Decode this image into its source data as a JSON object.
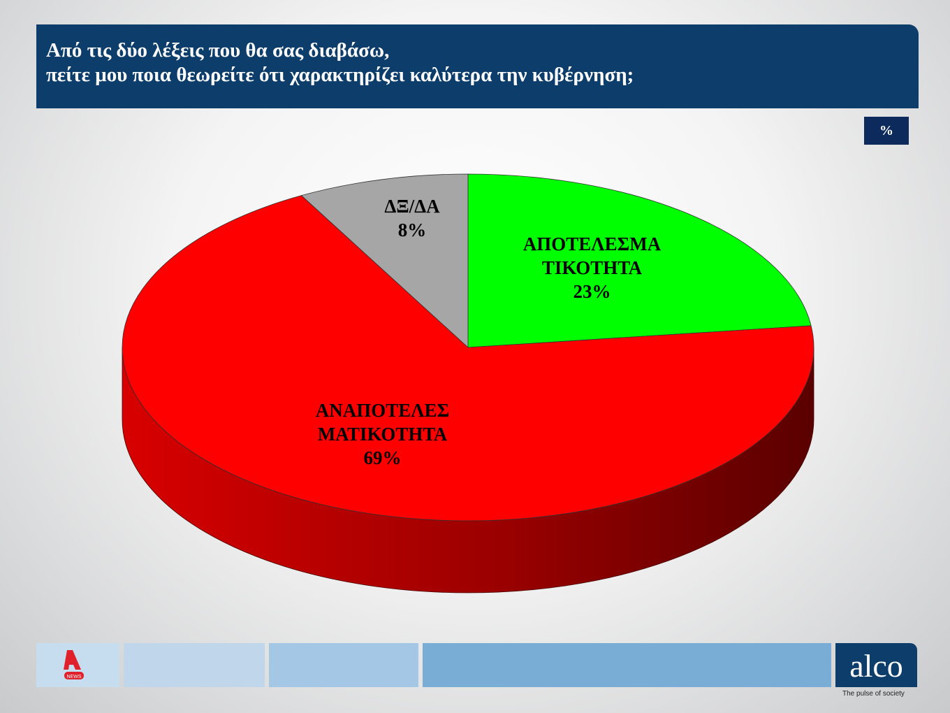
{
  "header": {
    "title": "Από τις δύο λέξεις που θα σας διαβάσω,\nπείτε μου ποια θεωρείτε ότι χαρακτηρίζει καλύτερα την κυβέρνηση;",
    "unit": "%"
  },
  "chart_data": {
    "type": "pie",
    "style": "3d",
    "slices": [
      {
        "label": "ΑΠΟΤΕΛΕΣΜΑ\nΤΙΚΟΤΗΤΑ",
        "value": 23,
        "value_label": "23%",
        "color": "#00ff00"
      },
      {
        "label": "ΑΝΑΠΟΤΕΛΕΣ\nΜΑΤΙΚΟΤΗΤΑ",
        "value": 69,
        "value_label": "69%",
        "color": "#ff0000"
      },
      {
        "label": "ΔΞ/ΔΑ",
        "value": 8,
        "value_label": "8%",
        "color": "#a6a6a6"
      }
    ]
  },
  "footer": {
    "logo_left": "A NEWS",
    "logo_right": "alco",
    "tagline": "The pulse of society"
  }
}
